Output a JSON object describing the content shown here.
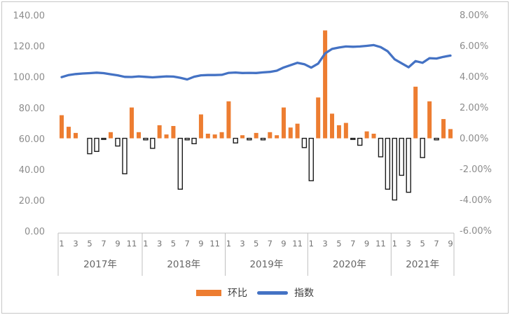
{
  "chart_data": {
    "type": "combo-bar-line",
    "title": "",
    "categories": [
      "2017-01",
      "2017-02",
      "2017-03",
      "2017-04",
      "2017-05",
      "2017-06",
      "2017-07",
      "2017-08",
      "2017-09",
      "2017-10",
      "2017-11",
      "2017-12",
      "2018-01",
      "2018-02",
      "2018-03",
      "2018-04",
      "2018-05",
      "2018-06",
      "2018-07",
      "2018-08",
      "2018-09",
      "2018-10",
      "2018-11",
      "2018-12",
      "2019-01",
      "2019-02",
      "2019-03",
      "2019-04",
      "2019-05",
      "2019-06",
      "2019-07",
      "2019-08",
      "2019-09",
      "2019-10",
      "2019-11",
      "2019-12",
      "2020-01",
      "2020-02",
      "2020-03",
      "2020-04",
      "2020-05",
      "2020-06",
      "2020-07",
      "2020-08",
      "2020-09",
      "2020-10",
      "2020-11",
      "2020-12",
      "2021-01",
      "2021-02",
      "2021-03",
      "2021-04",
      "2021-05",
      "2021-06",
      "2021-07",
      "2021-08",
      "2021-09"
    ],
    "series": [
      {
        "name": "环比",
        "type": "bar",
        "axis": "right",
        "unit": "%",
        "values": [
          1.5,
          0.75,
          0.35,
          0,
          -1.0,
          -0.85,
          -0.05,
          0.4,
          -0.5,
          -2.3,
          2.0,
          0.4,
          -0.1,
          -0.65,
          0.85,
          0.25,
          0.8,
          -3.3,
          -0.1,
          -0.35,
          1.55,
          0.3,
          0.25,
          0.4,
          2.4,
          -0.3,
          0.2,
          -0.1,
          0.35,
          -0.1,
          0.4,
          0.2,
          2.0,
          0.7,
          0.95,
          -0.6,
          -2.75,
          2.65,
          7.0,
          1.6,
          0.85,
          1.0,
          -0.05,
          -0.45,
          0.45,
          0.3,
          -1.2,
          -3.3,
          -4.0,
          -2.4,
          -3.5,
          3.35,
          -1.25,
          2.4,
          -0.1,
          1.25,
          0.6
        ]
      },
      {
        "name": "指数",
        "type": "line",
        "axis": "left",
        "values": [
          100.0,
          101.4,
          102.0,
          102.4,
          102.6,
          102.9,
          102.6,
          101.9,
          101.2,
          100.2,
          100.1,
          100.5,
          100.2,
          99.9,
          100.2,
          100.5,
          100.4,
          99.6,
          98.5,
          100.3,
          101.2,
          101.4,
          101.4,
          101.5,
          102.8,
          103.0,
          102.7,
          102.8,
          102.7,
          103.1,
          103.4,
          104.2,
          106.3,
          107.8,
          109.3,
          108.4,
          106.2,
          108.8,
          115.4,
          118.3,
          119.2,
          119.9,
          119.7,
          119.9,
          120.3,
          120.8,
          119.5,
          116.8,
          111.6,
          109.0,
          106.4,
          110.4,
          109.3,
          112.3,
          112.1,
          113.2,
          114.0
        ]
      }
    ],
    "axes": {
      "left": {
        "min": 0,
        "max": 140,
        "tick_values": [
          140,
          120,
          100,
          80,
          60,
          40,
          20,
          0
        ],
        "tick_labels": [
          "140.00",
          "120.00",
          "100.00",
          "80.00",
          "60.00",
          "40.00",
          "20.00",
          "0.00"
        ]
      },
      "right": {
        "min": -6,
        "max": 8,
        "tick_values": [
          8,
          6,
          4,
          2,
          0,
          -2,
          -4,
          -6
        ],
        "tick_labels": [
          "8.00%",
          "6.00%",
          "4.00%",
          "2.00%",
          "0.00%",
          "-2.00%",
          "-4.00%",
          "-6.00%"
        ]
      }
    },
    "x_axis": {
      "boundaries": [
        83,
        203,
        321.5,
        439.3,
        558.3,
        648
      ],
      "years": [
        {
          "label": "2017年",
          "n_months": 12,
          "shown_months": [
            1,
            3,
            5,
            7,
            9,
            11
          ]
        },
        {
          "label": "2018年",
          "n_months": 12,
          "shown_months": [
            1,
            3,
            5,
            7,
            9,
            11
          ]
        },
        {
          "label": "2019年",
          "n_months": 12,
          "shown_months": [
            1,
            3,
            5,
            7,
            9,
            11
          ]
        },
        {
          "label": "2020年",
          "n_months": 12,
          "shown_months": [
            1,
            3,
            5,
            7,
            9,
            11
          ]
        },
        {
          "label": "2021年",
          "n_months": 9,
          "shown_months": [
            1,
            3,
            5,
            7,
            9
          ]
        }
      ]
    },
    "grid": "off",
    "legend_position": "bottom-center",
    "legend": {
      "items": [
        {
          "label": "环比",
          "type": "bar",
          "color": "#ED7D31"
        },
        {
          "label": "指数",
          "type": "line",
          "color": "#4472C4"
        }
      ]
    },
    "colors": {
      "bar_positive_fill": "#ED7D31",
      "bar_negative_fill": "#FFFFFF",
      "bar_negative_stroke": "#1a1a1a",
      "line": "#4472C4",
      "axis_text": "#8c8c8c",
      "axis_line": "#BFBFBF"
    }
  }
}
